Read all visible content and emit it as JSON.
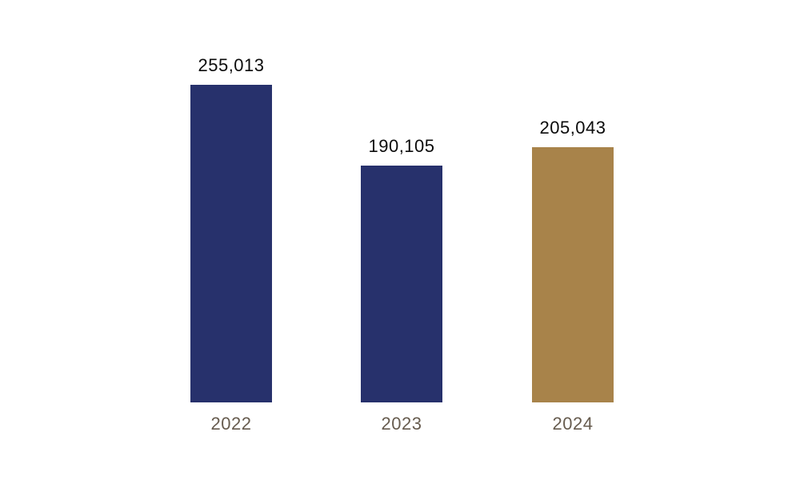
{
  "chart_data": {
    "type": "bar",
    "title": "",
    "xlabel": "",
    "ylabel": "",
    "categories": [
      "2022",
      "2023",
      "2024"
    ],
    "values": [
      255013,
      190105,
      205043
    ],
    "value_labels": [
      "255,013",
      "190,105",
      "205,043"
    ],
    "colors": [
      "#27316C",
      "#27316C",
      "#A8834A"
    ],
    "ylim": [
      0,
      255013
    ],
    "grid": false,
    "legend": false,
    "axes_visible": false,
    "value_label_color": "#0B0B0B",
    "axis_label_color": "#675C4F",
    "background": "#FFFFFF"
  }
}
